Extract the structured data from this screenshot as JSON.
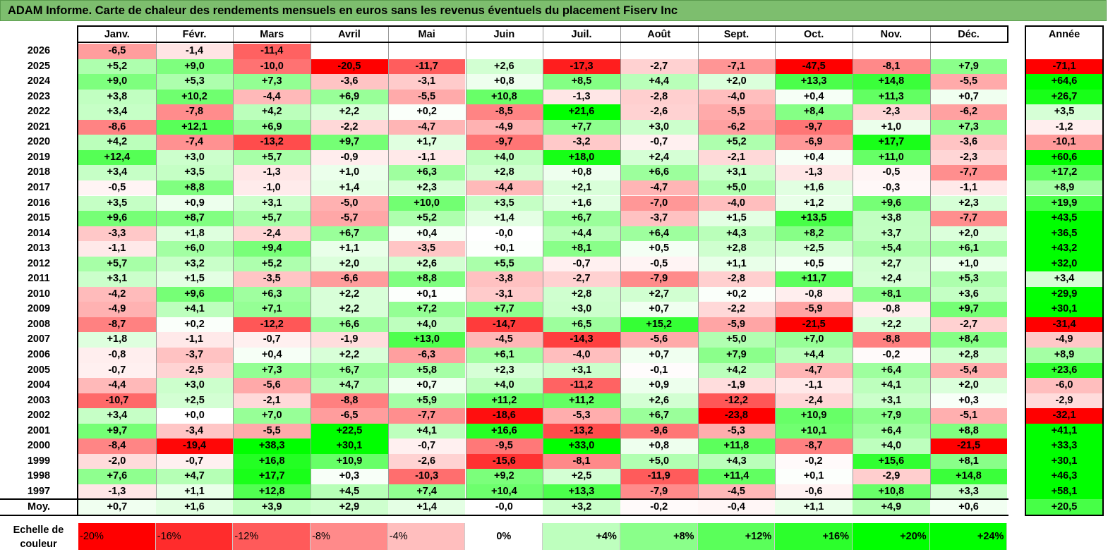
{
  "title": "ADAM Informe. Carte de chaleur des rendements mensuels en euros sans les revenus éventuels du placement Fiserv Inc",
  "chart_data": {
    "type": "heatmap",
    "title": "ADAM Informe. Carte de chaleur des rendements mensuels en euros sans les revenus éventuels du placement Fiserv Inc",
    "columns": [
      "Janv.",
      "Févr.",
      "Mars",
      "Avril",
      "Mai",
      "Juin",
      "Juil.",
      "Août",
      "Sept.",
      "Oct.",
      "Nov.",
      "Déc."
    ],
    "year_header": "Année",
    "rows": [
      {
        "year": "2026",
        "months": [
          "-6,5",
          "-1,4",
          "-11,4",
          "",
          "",
          "",
          "",
          "",
          "",
          "",
          "",
          ""
        ],
        "annual": ""
      },
      {
        "year": "2025",
        "months": [
          "+5,2",
          "+9,0",
          "-10,0",
          "-20,5",
          "-11,7",
          "+2,6",
          "-17,3",
          "-2,7",
          "-7,1",
          "-47,5",
          "-8,1",
          "+7,9"
        ],
        "annual": "-71,1"
      },
      {
        "year": "2024",
        "months": [
          "+9,0",
          "+5,3",
          "+7,3",
          "-3,6",
          "-3,1",
          "+0,8",
          "+8,5",
          "+4,4",
          "+2,0",
          "+13,3",
          "+14,8",
          "-5,5"
        ],
        "annual": "+64,6"
      },
      {
        "year": "2023",
        "months": [
          "+3,8",
          "+10,2",
          "-4,4",
          "+6,9",
          "-5,5",
          "+10,8",
          "-1,3",
          "-2,8",
          "-4,0",
          "+0,4",
          "+11,3",
          "+0,7"
        ],
        "annual": "+26,7"
      },
      {
        "year": "2022",
        "months": [
          "+3,4",
          "-7,8",
          "+4,2",
          "+2,2",
          "+0,2",
          "-8,5",
          "+21,6",
          "-2,6",
          "-5,5",
          "+8,4",
          "-2,3",
          "-6,2"
        ],
        "annual": "+3,5"
      },
      {
        "year": "2021",
        "months": [
          "-8,6",
          "+12,1",
          "+6,9",
          "-2,2",
          "-4,7",
          "-4,9",
          "+7,7",
          "+3,0",
          "-6,2",
          "-9,7",
          "+1,0",
          "+7,3"
        ],
        "annual": "-1,2"
      },
      {
        "year": "2020",
        "months": [
          "+4,2",
          "-7,4",
          "-13,2",
          "+9,7",
          "+1,7",
          "-9,7",
          "-3,2",
          "-0,7",
          "+5,2",
          "-6,9",
          "+17,7",
          "-3,6"
        ],
        "annual": "-10,1"
      },
      {
        "year": "2019",
        "months": [
          "+12,4",
          "+3,0",
          "+5,7",
          "-0,9",
          "-1,1",
          "+4,0",
          "+18,0",
          "+2,4",
          "-2,1",
          "+0,4",
          "+11,0",
          "-2,3"
        ],
        "annual": "+60,6"
      },
      {
        "year": "2018",
        "months": [
          "+3,4",
          "+3,5",
          "-1,3",
          "+1,0",
          "+6,3",
          "+2,8",
          "+0,8",
          "+6,6",
          "+3,1",
          "-1,3",
          "-0,5",
          "-7,7"
        ],
        "annual": "+17,2"
      },
      {
        "year": "2017",
        "months": [
          "-0,5",
          "+8,8",
          "-1,0",
          "+1,4",
          "+2,3",
          "-4,4",
          "+2,1",
          "-4,7",
          "+5,0",
          "+1,6",
          "-0,3",
          "-1,1"
        ],
        "annual": "+8,9"
      },
      {
        "year": "2016",
        "months": [
          "+3,5",
          "+0,9",
          "+3,1",
          "-5,0",
          "+10,0",
          "+3,5",
          "+1,6",
          "-7,0",
          "-4,0",
          "+1,2",
          "+9,6",
          "+2,3"
        ],
        "annual": "+19,9"
      },
      {
        "year": "2015",
        "months": [
          "+9,6",
          "+8,7",
          "+5,7",
          "-5,7",
          "+5,2",
          "+1,4",
          "+6,7",
          "-3,7",
          "+1,5",
          "+13,5",
          "+3,8",
          "-7,7"
        ],
        "annual": "+43,5"
      },
      {
        "year": "2014",
        "months": [
          "-3,3",
          "+1,8",
          "-2,4",
          "+6,7",
          "+0,4",
          "-0,0",
          "+4,4",
          "+6,4",
          "+4,3",
          "+8,2",
          "+3,7",
          "+2,0"
        ],
        "annual": "+36,5"
      },
      {
        "year": "2013",
        "months": [
          "-1,1",
          "+6,0",
          "+9,4",
          "+1,1",
          "-3,5",
          "+0,1",
          "+8,1",
          "+0,5",
          "+2,8",
          "+2,5",
          "+5,4",
          "+6,1"
        ],
        "annual": "+43,2"
      },
      {
        "year": "2012",
        "months": [
          "+5,7",
          "+3,2",
          "+5,2",
          "+2,0",
          "+2,6",
          "+5,5",
          "-0,7",
          "-0,5",
          "+1,1",
          "+0,5",
          "+2,7",
          "+1,0"
        ],
        "annual": "+32,0"
      },
      {
        "year": "2011",
        "months": [
          "+3,1",
          "+1,5",
          "-3,5",
          "-6,6",
          "+8,8",
          "-3,8",
          "-2,7",
          "-7,9",
          "-2,8",
          "+11,7",
          "+2,4",
          "+5,3"
        ],
        "annual": "+3,4"
      },
      {
        "year": "2010",
        "months": [
          "-4,2",
          "+9,6",
          "+6,3",
          "+2,2",
          "+0,1",
          "-3,1",
          "+2,8",
          "+2,7",
          "+0,2",
          "-0,8",
          "+8,1",
          "+3,6"
        ],
        "annual": "+29,9"
      },
      {
        "year": "2009",
        "months": [
          "-4,9",
          "+4,1",
          "+7,1",
          "+2,2",
          "+7,2",
          "+7,7",
          "+3,0",
          "+0,7",
          "-2,2",
          "-5,9",
          "-0,8",
          "+9,7"
        ],
        "annual": "+30,1"
      },
      {
        "year": "2008",
        "months": [
          "-8,7",
          "+0,2",
          "-12,2",
          "+6,6",
          "+4,0",
          "-14,7",
          "+6,5",
          "+15,2",
          "-5,9",
          "-21,5",
          "+2,2",
          "-2,7"
        ],
        "annual": "-31,4"
      },
      {
        "year": "2007",
        "months": [
          "+1,8",
          "-1,1",
          "-0,7",
          "-1,9",
          "+13,0",
          "-4,5",
          "-14,3",
          "-5,6",
          "+5,0",
          "+7,0",
          "-8,8",
          "+8,4"
        ],
        "annual": "-4,9"
      },
      {
        "year": "2006",
        "months": [
          "-0,8",
          "-3,7",
          "+0,4",
          "+2,2",
          "-6,3",
          "+6,1",
          "-4,0",
          "+0,7",
          "+7,9",
          "+4,4",
          "-0,2",
          "+2,8"
        ],
        "annual": "+8,9"
      },
      {
        "year": "2005",
        "months": [
          "-0,7",
          "-2,5",
          "+7,3",
          "+6,7",
          "+5,8",
          "+2,3",
          "+3,1",
          "-0,1",
          "+4,2",
          "-4,7",
          "+6,4",
          "-5,4"
        ],
        "annual": "+23,6"
      },
      {
        "year": "2004",
        "months": [
          "-4,4",
          "+3,0",
          "-5,6",
          "+4,7",
          "+0,7",
          "+4,0",
          "-11,2",
          "+0,9",
          "-1,9",
          "-1,1",
          "+4,1",
          "+2,0"
        ],
        "annual": "-6,0"
      },
      {
        "year": "2003",
        "months": [
          "-10,7",
          "+2,5",
          "-2,1",
          "-8,8",
          "+5,9",
          "+11,2",
          "+11,2",
          "+2,6",
          "-12,2",
          "-2,4",
          "+3,1",
          "+0,3"
        ],
        "annual": "-2,9"
      },
      {
        "year": "2002",
        "months": [
          "+3,4",
          "+0,0",
          "+7,0",
          "-6,5",
          "-7,7",
          "-18,6",
          "-5,3",
          "+6,7",
          "-23,8",
          "+10,9",
          "+7,9",
          "-5,1"
        ],
        "annual": "-32,1"
      },
      {
        "year": "2001",
        "months": [
          "+9,7",
          "-3,4",
          "-5,5",
          "+22,5",
          "+4,1",
          "+16,6",
          "-13,2",
          "-9,6",
          "-5,3",
          "+10,1",
          "+6,4",
          "+8,8"
        ],
        "annual": "+41,1"
      },
      {
        "year": "2000",
        "months": [
          "-8,4",
          "-19,4",
          "+38,3",
          "+30,1",
          "-0,7",
          "-9,5",
          "+33,0",
          "+0,8",
          "+11,8",
          "-8,7",
          "+4,0",
          "-21,5"
        ],
        "annual": "+33,3"
      },
      {
        "year": "1999",
        "months": [
          "-2,0",
          "-0,7",
          "+16,8",
          "+10,9",
          "-2,6",
          "-15,6",
          "-8,1",
          "+5,0",
          "+4,3",
          "-0,2",
          "+15,6",
          "+8,1"
        ],
        "annual": "+30,1"
      },
      {
        "year": "1998",
        "months": [
          "+7,6",
          "+4,7",
          "+17,7",
          "+0,3",
          "-10,3",
          "+9,2",
          "+2,5",
          "-11,9",
          "+11,4",
          "+0,1",
          "-2,9",
          "+14,8"
        ],
        "annual": "+46,3"
      },
      {
        "year": "1997",
        "months": [
          "-1,3",
          "+1,1",
          "+12,8",
          "+4,5",
          "+7,4",
          "+10,4",
          "+13,3",
          "-7,9",
          "-4,5",
          "-0,6",
          "+10,8",
          "+3,3"
        ],
        "annual": "+58,1"
      }
    ],
    "average": {
      "label": "Moy.",
      "months": [
        "+0,7",
        "+1,6",
        "+3,9",
        "+2,9",
        "+1,4",
        "-0,0",
        "+3,2",
        "-0,2",
        "-0,4",
        "+1,1",
        "+4,9",
        "+0,6"
      ],
      "annual": "+20,5"
    },
    "scale": {
      "label": "Echelle de couleur",
      "stops": [
        "-20%",
        "-16%",
        "-12%",
        "-8%",
        "-4%",
        "0%",
        "+4%",
        "+8%",
        "+12%",
        "+16%",
        "+20%",
        "+24%"
      ]
    },
    "colors": {
      "negative": "#ff0000",
      "neutral": "#ffffff",
      "positive": "#00ff00",
      "title_bg": "#7dbe6e"
    }
  }
}
